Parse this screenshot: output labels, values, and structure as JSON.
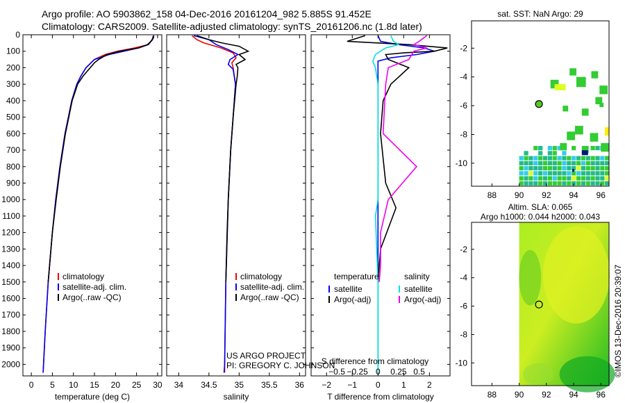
{
  "header": {
    "line1": "Argo profile: AO 5903862_158 04-Dec-2016 20161204_982 5.885S 91.452E",
    "line2": "Climatology: CARS2009. Satellite-adjusted climatology: synTS_20161206.nc (1.8d later)"
  },
  "sst_map": {
    "title": "sat. SST: NaN Argo: 29",
    "xticks": [
      "88",
      "90",
      "92",
      "94",
      "96"
    ],
    "yticks": [
      "-2",
      "-4",
      "-6",
      "-8",
      "-10"
    ],
    "xlim": [
      86.5,
      96.6
    ],
    "ylim": [
      -11.6,
      -0.1
    ],
    "float_position": {
      "lon": 91.452,
      "lat": -5.885
    },
    "colors": {
      "land_free": "#ffffff",
      "ocean_green": "#33cc33",
      "ocean_teal": "#22bb88",
      "ocean_cyan": "#33ccee",
      "ocean_yellow": "#ddff22",
      "ocean_navy": "#001a7a"
    }
  },
  "sla_map": {
    "title_line1": "Altim. SLA: 0.065",
    "title_line2": "Argo h1000: 0.044 h2000: 0.043",
    "xticks": [
      "88",
      "90",
      "92",
      "94",
      "96"
    ],
    "yticks": [
      "-2",
      "-4",
      "-6",
      "-8",
      "-10"
    ],
    "xlim": [
      86.5,
      96.6
    ],
    "ylim": [
      -11.6,
      -0.1
    ],
    "float_position": {
      "lon": 91.452,
      "lat": -5.885
    }
  },
  "credit": "©IMOS 13-Dec-2016 20:39:07",
  "project_line1": "US ARGO PROJECT",
  "project_line2": "PI: GREGORY C. JOHNSON",
  "chart_data": [
    {
      "type": "line",
      "name": "temperature-panel",
      "xlabel": "temperature (deg C)",
      "ylabel": "",
      "xlim": [
        -2,
        31
      ],
      "ylim": [
        2070,
        0
      ],
      "xticks": [
        "0",
        "5",
        "10",
        "15",
        "20",
        "25",
        "30"
      ],
      "xtick_values": [
        0,
        5,
        10,
        15,
        20,
        25,
        30
      ],
      "yticks": [
        "0",
        "100",
        "200",
        "300",
        "400",
        "500",
        "600",
        "700",
        "800",
        "900",
        "1000",
        "1100",
        "1200",
        "1300",
        "1400",
        "1500",
        "1600",
        "1700",
        "1800",
        "1900",
        "2000"
      ],
      "ytick_values": [
        0,
        100,
        200,
        300,
        400,
        500,
        600,
        700,
        800,
        900,
        1000,
        1100,
        1200,
        1300,
        1400,
        1500,
        1600,
        1700,
        1800,
        1900,
        2000
      ],
      "legend": [
        "climatology",
        "satellite-adj. clim.",
        "Argo(..raw -QC)"
      ],
      "series": [
        {
          "name": "climatology",
          "color": "#ee0000",
          "depth": [
            5,
            30,
            60,
            80,
            100,
            120,
            150,
            200,
            250,
            300,
            400,
            500,
            600,
            800,
            1000,
            1200,
            1500,
            1800,
            2050
          ],
          "values": [
            29.0,
            28.8,
            27.8,
            24.5,
            20.5,
            17.5,
            15.0,
            13.0,
            11.8,
            10.8,
            9.6,
            8.8,
            8.0,
            6.8,
            5.8,
            5.0,
            4.0,
            3.3,
            2.8
          ]
        },
        {
          "name": "satellite-adj. clim.",
          "color": "#0000ee",
          "depth": [
            5,
            30,
            60,
            80,
            100,
            120,
            150,
            200,
            250,
            300,
            400,
            500,
            600,
            800,
            1000,
            1200,
            1500,
            1800,
            2050
          ],
          "values": [
            29.0,
            28.7,
            27.8,
            25.5,
            22.0,
            18.5,
            15.0,
            13.0,
            11.8,
            10.8,
            9.6,
            8.8,
            8.0,
            6.8,
            5.8,
            5.0,
            4.0,
            3.3,
            2.8
          ]
        },
        {
          "name": "Argo(..raw -QC)",
          "color": "#000000",
          "depth": [
            5,
            20,
            40,
            60,
            80,
            100,
            120,
            150,
            170,
            200,
            250,
            300,
            400,
            500,
            600,
            800,
            1000,
            1200,
            1500
          ],
          "values": [
            29.1,
            29.0,
            28.4,
            27.6,
            25.5,
            21.0,
            18.0,
            16.0,
            15.0,
            14.0,
            12.3,
            11.0,
            9.7,
            8.9,
            8.1,
            6.9,
            5.9,
            5.0,
            4.0
          ]
        }
      ]
    },
    {
      "type": "line",
      "name": "salinity-panel",
      "xlabel": "salinity",
      "xlim": [
        33.8,
        36.1
      ],
      "ylim": [
        2070,
        0
      ],
      "xticks": [
        "34",
        "34.5",
        "35",
        "35.5",
        "36"
      ],
      "xtick_values": [
        34,
        34.5,
        35,
        35.5,
        36
      ],
      "legend": [
        "climatology",
        "satellite-adj. clim.",
        "Argo(..raw -QC)"
      ],
      "series": [
        {
          "name": "climatology",
          "color": "#ee0000",
          "depth": [
            5,
            30,
            50,
            80,
            110,
            140,
            170,
            200,
            300,
            500,
            700,
            1000,
            1500,
            2000,
            2050
          ],
          "values": [
            34.22,
            34.3,
            34.42,
            34.7,
            34.9,
            34.95,
            34.88,
            34.9,
            34.94,
            34.9,
            34.86,
            34.82,
            34.78,
            34.76,
            34.76
          ]
        },
        {
          "name": "satellite-adj. clim.",
          "color": "#0000ee",
          "depth": [
            5,
            30,
            60,
            90,
            120,
            150,
            180,
            210,
            300,
            500,
            700,
            1000,
            1500,
            2000,
            2050
          ],
          "values": [
            34.25,
            34.5,
            34.62,
            34.82,
            34.98,
            34.85,
            34.82,
            34.9,
            34.94,
            34.9,
            34.86,
            34.82,
            34.78,
            34.76,
            34.75
          ]
        },
        {
          "name": "Argo(..raw -QC)",
          "color": "#000000",
          "depth": [
            5,
            30,
            50,
            70,
            100,
            120,
            150,
            180,
            200,
            250,
            300,
            500,
            700,
            1000,
            1200,
            1500
          ],
          "values": [
            34.3,
            34.5,
            34.72,
            35.0,
            35.15,
            35.0,
            35.1,
            34.95,
            34.98,
            34.97,
            34.95,
            34.9,
            34.86,
            34.82,
            34.8,
            34.78
          ]
        }
      ]
    },
    {
      "type": "line",
      "name": "difference-panel",
      "xlabel": "T difference from climatology",
      "top_label": "S difference from climatology",
      "xlim": [
        -2.6,
        2.8
      ],
      "ylim": [
        2070,
        0
      ],
      "xticks": [
        "−2",
        "−1",
        "0",
        "1",
        "2"
      ],
      "xtick_values": [
        -2,
        -1,
        0,
        1,
        2
      ],
      "sticks": [
        "−0.5",
        "−0.25",
        "0",
        "0.25",
        "0.5"
      ],
      "stick_positions": [
        -1.6,
        -0.8,
        0,
        0.8,
        1.6
      ],
      "legend_headers": [
        "temperature",
        "salinity"
      ],
      "legend": [
        "satellite",
        "Argo(-adj)",
        "satellite",
        "Argo(-adj)"
      ],
      "series": [
        {
          "name": "temperature satellite",
          "color": "#0000ee",
          "depth": [
            5,
            40,
            60,
            80,
            100,
            120,
            140,
            160,
            200,
            300,
            2050
          ],
          "values": [
            0.0,
            0.1,
            0.8,
            1.8,
            2.2,
            1.5,
            0.5,
            0.0,
            0.0,
            0.0,
            0.0
          ]
        },
        {
          "name": "temperature Argo(-adj)",
          "color": "#000000",
          "depth": [
            5,
            40,
            60,
            80,
            100,
            110,
            120,
            150,
            200,
            300,
            400,
            600,
            900,
            1050,
            1300,
            1500
          ],
          "values": [
            -0.5,
            -1.2,
            1.2,
            2.7,
            2.2,
            1.0,
            0.3,
            0.4,
            1.2,
            0.5,
            0.2,
            0.1,
            0.3,
            0.7,
            0.1,
            0.0
          ]
        },
        {
          "name": "salinity satellite",
          "color": "#00e0e0",
          "depth": [
            5,
            40,
            60,
            80,
            100,
            120,
            160,
            200,
            300,
            700,
            1000,
            1100,
            1500,
            2050
          ],
          "values": [
            0.5,
            0.6,
            0.8,
            0.3,
            0.1,
            -0.1,
            -0.2,
            -0.1,
            0.0,
            0.0,
            0.0,
            -0.1,
            0.0,
            0.0
          ]
        },
        {
          "name": "salinity Argo(-adj)",
          "color": "#ee00ee",
          "depth": [
            5,
            40,
            60,
            80,
            100,
            150,
            200,
            300,
            600,
            800,
            1000,
            1200,
            1400,
            1500
          ],
          "values": [
            1.9,
            1.6,
            1.4,
            1.9,
            1.4,
            1.2,
            0.4,
            0.3,
            0.2,
            1.5,
            0.4,
            0.1,
            0.1,
            0.05
          ]
        }
      ]
    }
  ]
}
